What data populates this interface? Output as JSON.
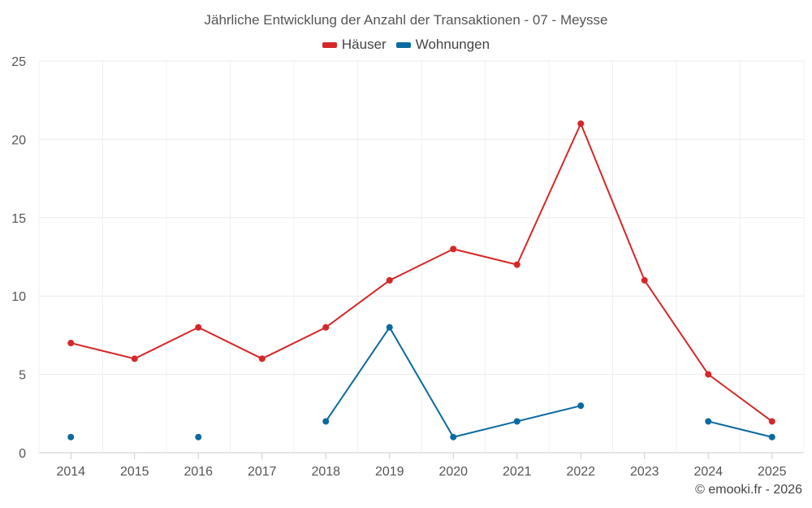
{
  "chart_data": {
    "type": "line",
    "title": "Jährliche Entwicklung der Anzahl der Transaktionen - 07 - Meysse",
    "x": [
      "2014",
      "2015",
      "2016",
      "2017",
      "2018",
      "2019",
      "2020",
      "2021",
      "2022",
      "2023",
      "2024",
      "2025"
    ],
    "series": [
      {
        "name": "Häuser",
        "color": "#d62728",
        "values": [
          7,
          6,
          8,
          6,
          8,
          11,
          13,
          12,
          21,
          11,
          5,
          2
        ]
      },
      {
        "name": "Wohnungen",
        "color": "#0b6a9f",
        "values": [
          1,
          null,
          1,
          null,
          2,
          8,
          1,
          2,
          3,
          null,
          2,
          1
        ]
      }
    ],
    "ylim": [
      0,
      25
    ],
    "yticks": [
      0,
      5,
      10,
      15,
      20,
      25
    ],
    "grid": true,
    "legend_position": "top-center"
  },
  "credit": "© emooki.fr - 2026"
}
